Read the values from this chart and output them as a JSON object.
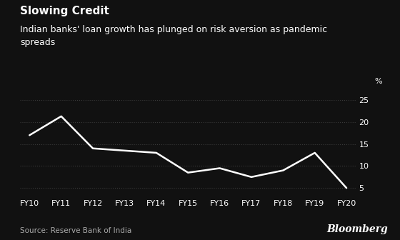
{
  "title": "Slowing Credit",
  "subtitle": "Indian banks' loan growth has plunged on risk aversion as pandemic\nspreads",
  "source": "Source: Reserve Bank of India",
  "watermark": "Bloomberg",
  "x_labels": [
    "FY10",
    "FY11",
    "FY12",
    "FY13",
    "FY14",
    "FY15",
    "FY16",
    "FY17",
    "FY18",
    "FY19",
    "FY20"
  ],
  "y_values": [
    17.0,
    21.3,
    14.0,
    13.5,
    13.0,
    8.5,
    9.5,
    7.5,
    9.0,
    13.0,
    5.0
  ],
  "ylim": [
    3,
    27
  ],
  "yticks": [
    5,
    10,
    15,
    20,
    25
  ],
  "ylabel": "%",
  "line_color": "#ffffff",
  "background_color": "#111111",
  "grid_color": "#3a3a3a",
  "text_color": "#ffffff",
  "source_color": "#aaaaaa",
  "title_fontsize": 11,
  "subtitle_fontsize": 9,
  "source_fontsize": 7.5,
  "tick_fontsize": 8,
  "watermark_fontsize": 10
}
